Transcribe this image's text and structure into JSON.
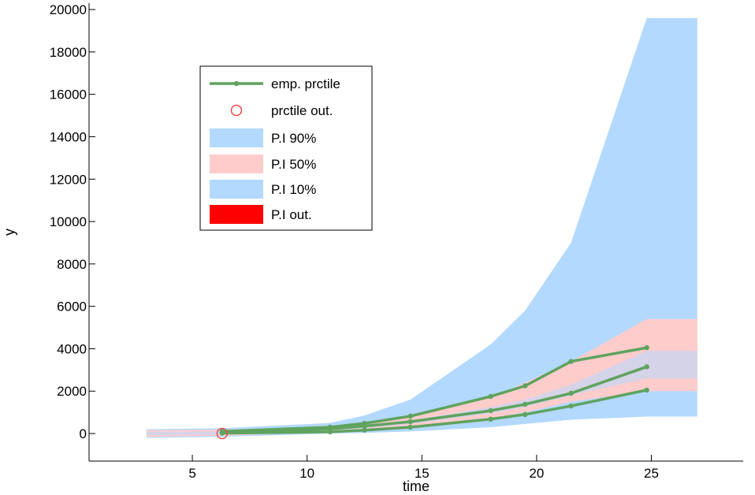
{
  "chart_data": {
    "type": "area",
    "title": "",
    "xlabel": "time",
    "ylabel": "y",
    "xlim": [
      0.5,
      29
    ],
    "ylim": [
      -1300,
      20300
    ],
    "xticks": [
      5,
      10,
      15,
      20,
      25
    ],
    "yticks": [
      0,
      2000,
      4000,
      6000,
      8000,
      10000,
      12000,
      14000,
      16000,
      18000,
      20000
    ],
    "grid": false,
    "legend_position": "top-left",
    "legend": [
      {
        "label": "emp. prctile",
        "kind": "line-marker",
        "color": "#5fa35f"
      },
      {
        "label": "prctile out.",
        "kind": "circle",
        "color": "#e34a4a"
      },
      {
        "label": "P.I 90%",
        "kind": "patch",
        "color": "#b3d9ff"
      },
      {
        "label": "P.I 50%",
        "kind": "patch",
        "color": "#ffcccc"
      },
      {
        "label": "P.I 10%",
        "kind": "patch",
        "color": "#b3d9ff"
      },
      {
        "label": "P.I out.",
        "kind": "patch",
        "color": "#ff0000"
      }
    ],
    "bands": [
      {
        "name": "P.I 90%",
        "color": "#b3d9ff",
        "x": [
          3,
          6.3,
          11,
          12.5,
          14.5,
          18,
          19.5,
          21.5,
          24.8,
          27
        ],
        "lower": [
          -200,
          -150,
          0,
          30,
          100,
          300,
          450,
          650,
          800,
          800
        ],
        "upper": [
          200,
          250,
          500,
          850,
          1600,
          4200,
          5800,
          9000,
          19600,
          19600
        ]
      },
      {
        "name": "P.I 50%",
        "color": "#ffcccc",
        "x": [
          3,
          6.3,
          11,
          12.5,
          14.5,
          18,
          19.5,
          21.5,
          24.8,
          27
        ],
        "lower": [
          -150,
          -100,
          80,
          150,
          300,
          700,
          1000,
          1500,
          2000,
          2000
        ],
        "upper": [
          150,
          180,
          300,
          500,
          800,
          1700,
          2400,
          3400,
          5400,
          5400
        ]
      },
      {
        "name": "P.I 10%",
        "color": "#b3d9ff",
        "x": [
          3,
          6.3,
          11,
          12.5,
          14.5,
          18,
          19.5,
          21.5,
          24.8,
          27
        ],
        "lower": [
          -80,
          -50,
          150,
          250,
          450,
          950,
          1250,
          1800,
          2600,
          2600
        ],
        "upper": [
          80,
          100,
          230,
          380,
          620,
          1250,
          1600,
          2300,
          3900,
          3900
        ]
      }
    ],
    "series": [
      {
        "name": "emp. prctile",
        "color": "#5fa35f",
        "x": [
          6.3,
          11,
          12.5,
          14.5,
          18,
          19.5,
          21.5,
          24.8
        ],
        "y": [
          100,
          300,
          480,
          820,
          1750,
          2250,
          3400,
          4050
        ]
      },
      {
        "name": "emp. prctile",
        "color": "#5fa35f",
        "x": [
          6.3,
          11,
          12.5,
          14.5,
          18,
          19.5,
          21.5,
          24.8
        ],
        "y": [
          60,
          220,
          350,
          560,
          1080,
          1380,
          1900,
          3150
        ]
      },
      {
        "name": "emp. prctile",
        "color": "#5fa35f",
        "x": [
          6.3,
          11,
          12.5,
          14.5,
          18,
          19.5,
          21.5,
          24.8
        ],
        "y": [
          20,
          80,
          160,
          300,
          680,
          900,
          1300,
          2050
        ]
      }
    ],
    "outliers": [
      {
        "x": 6.3,
        "y": 0,
        "color": "#e34a4a"
      }
    ]
  }
}
